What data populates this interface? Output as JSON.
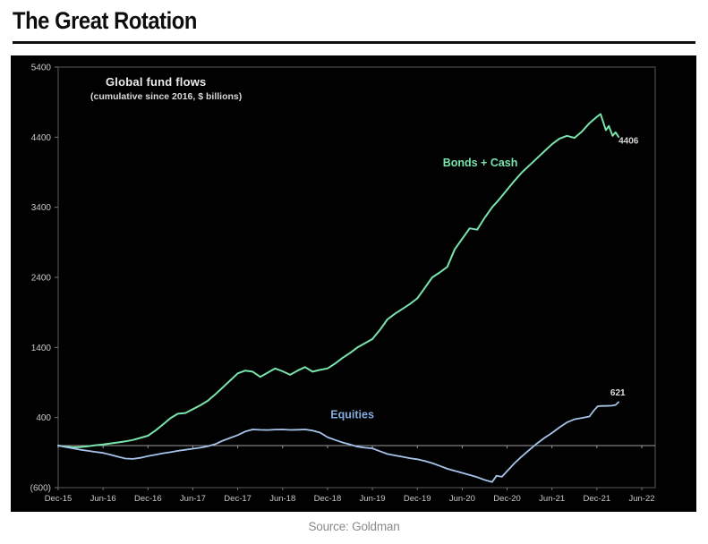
{
  "page": {
    "title": "The Great Rotation",
    "source": "Source: Goldman"
  },
  "chart_data": {
    "type": "line",
    "title": "Global fund flows",
    "subtitle": "(cumulative since 2016, $ billions)",
    "x_unit": "months since Dec-2015",
    "xlim": [
      0,
      78
    ],
    "ylim": [
      -600,
      5400
    ],
    "grid": "zero-line only",
    "legend": "inline labels on lines",
    "x_ticks": [
      {
        "label": "Dec-15",
        "t": 0
      },
      {
        "label": "Jun-16",
        "t": 6
      },
      {
        "label": "Dec-16",
        "t": 12
      },
      {
        "label": "Jun-17",
        "t": 18
      },
      {
        "label": "Dec-17",
        "t": 24
      },
      {
        "label": "Jun-18",
        "t": 30
      },
      {
        "label": "Dec-18",
        "t": 36
      },
      {
        "label": "Jun-19",
        "t": 42
      },
      {
        "label": "Dec-19",
        "t": 48
      },
      {
        "label": "Jun-20",
        "t": 54
      },
      {
        "label": "Dec-20",
        "t": 60
      },
      {
        "label": "Jun-21",
        "t": 66
      },
      {
        "label": "Dec-21",
        "t": 72
      },
      {
        "label": "Jun-22",
        "t": 78
      }
    ],
    "y_ticks": [
      {
        "label": "5400",
        "v": 5400
      },
      {
        "label": "4400",
        "v": 4400
      },
      {
        "label": "3400",
        "v": 3400
      },
      {
        "label": "2400",
        "v": 2400
      },
      {
        "label": "1400",
        "v": 1400
      },
      {
        "label": "400",
        "v": 400
      },
      {
        "label": "(600)",
        "v": -600
      }
    ],
    "series": [
      {
        "name": "Bonds + Cash",
        "color": "#79e4ad",
        "stroke_width": 2,
        "end_value": 4406,
        "points": [
          [
            0,
            0
          ],
          [
            1,
            -15
          ],
          [
            2,
            -25
          ],
          [
            3,
            -20
          ],
          [
            4,
            -10
          ],
          [
            5,
            5
          ],
          [
            6,
            15
          ],
          [
            7,
            30
          ],
          [
            8,
            45
          ],
          [
            9,
            60
          ],
          [
            10,
            80
          ],
          [
            11,
            110
          ],
          [
            12,
            140
          ],
          [
            13,
            215
          ],
          [
            14,
            300
          ],
          [
            15,
            390
          ],
          [
            16,
            455
          ],
          [
            17,
            465
          ],
          [
            18,
            520
          ],
          [
            19,
            575
          ],
          [
            20,
            640
          ],
          [
            21,
            730
          ],
          [
            22,
            830
          ],
          [
            23,
            930
          ],
          [
            24,
            1030
          ],
          [
            25,
            1070
          ],
          [
            26,
            1055
          ],
          [
            27,
            980
          ],
          [
            28,
            1040
          ],
          [
            29,
            1100
          ],
          [
            30,
            1060
          ],
          [
            31,
            1010
          ],
          [
            32,
            1070
          ],
          [
            33,
            1120
          ],
          [
            34,
            1055
          ],
          [
            35,
            1080
          ],
          [
            36,
            1100
          ],
          [
            37,
            1170
          ],
          [
            38,
            1250
          ],
          [
            39,
            1320
          ],
          [
            40,
            1400
          ],
          [
            41,
            1460
          ],
          [
            42,
            1520
          ],
          [
            43,
            1650
          ],
          [
            44,
            1800
          ],
          [
            45,
            1880
          ],
          [
            46,
            1950
          ],
          [
            47,
            2020
          ],
          [
            48,
            2100
          ],
          [
            49,
            2250
          ],
          [
            50,
            2400
          ],
          [
            51,
            2470
          ],
          [
            52,
            2550
          ],
          [
            53,
            2800
          ],
          [
            54,
            2950
          ],
          [
            55,
            3100
          ],
          [
            56,
            3080
          ],
          [
            57,
            3250
          ],
          [
            58,
            3400
          ],
          [
            59,
            3520
          ],
          [
            60,
            3650
          ],
          [
            61,
            3780
          ],
          [
            62,
            3900
          ],
          [
            63,
            4000
          ],
          [
            64,
            4100
          ],
          [
            65,
            4200
          ],
          [
            66,
            4300
          ],
          [
            67,
            4380
          ],
          [
            68,
            4420
          ],
          [
            69,
            4390
          ],
          [
            70,
            4480
          ],
          [
            71,
            4600
          ],
          [
            72,
            4690
          ],
          [
            72.5,
            4730
          ],
          [
            73.2,
            4500
          ],
          [
            73.6,
            4560
          ],
          [
            74.1,
            4420
          ],
          [
            74.5,
            4470
          ],
          [
            74.9,
            4406
          ]
        ]
      },
      {
        "name": "Equities",
        "color": "#a6c4e9",
        "stroke_width": 1.8,
        "end_value": 621,
        "points": [
          [
            0,
            0
          ],
          [
            1,
            -20
          ],
          [
            2,
            -40
          ],
          [
            3,
            -60
          ],
          [
            4,
            -75
          ],
          [
            5,
            -90
          ],
          [
            6,
            -105
          ],
          [
            7,
            -130
          ],
          [
            8,
            -160
          ],
          [
            9,
            -185
          ],
          [
            10,
            -190
          ],
          [
            11,
            -175
          ],
          [
            12,
            -150
          ],
          [
            13,
            -130
          ],
          [
            14,
            -110
          ],
          [
            15,
            -95
          ],
          [
            16,
            -75
          ],
          [
            17,
            -60
          ],
          [
            18,
            -45
          ],
          [
            19,
            -30
          ],
          [
            20,
            -10
          ],
          [
            21,
            20
          ],
          [
            22,
            70
          ],
          [
            23,
            110
          ],
          [
            24,
            150
          ],
          [
            25,
            200
          ],
          [
            26,
            230
          ],
          [
            27,
            225
          ],
          [
            28,
            222
          ],
          [
            29,
            228
          ],
          [
            30,
            230
          ],
          [
            31,
            224
          ],
          [
            32,
            226
          ],
          [
            33,
            230
          ],
          [
            34,
            215
          ],
          [
            35,
            185
          ],
          [
            36,
            120
          ],
          [
            37,
            80
          ],
          [
            38,
            45
          ],
          [
            39,
            15
          ],
          [
            40,
            -15
          ],
          [
            41,
            -30
          ],
          [
            42,
            -40
          ],
          [
            43,
            -80
          ],
          [
            44,
            -120
          ],
          [
            45,
            -140
          ],
          [
            46,
            -160
          ],
          [
            47,
            -180
          ],
          [
            48,
            -195
          ],
          [
            49,
            -220
          ],
          [
            50,
            -250
          ],
          [
            51,
            -290
          ],
          [
            52,
            -330
          ],
          [
            53,
            -360
          ],
          [
            54,
            -390
          ],
          [
            55,
            -420
          ],
          [
            56,
            -450
          ],
          [
            57,
            -490
          ],
          [
            58,
            -520
          ],
          [
            58.6,
            -430
          ],
          [
            59.3,
            -445
          ],
          [
            60,
            -365
          ],
          [
            61,
            -250
          ],
          [
            62,
            -150
          ],
          [
            63,
            -60
          ],
          [
            64,
            30
          ],
          [
            65,
            110
          ],
          [
            66,
            180
          ],
          [
            67,
            260
          ],
          [
            68,
            330
          ],
          [
            69,
            375
          ],
          [
            70,
            395
          ],
          [
            71,
            415
          ],
          [
            71.6,
            500
          ],
          [
            72.1,
            560
          ],
          [
            72.6,
            565
          ],
          [
            73.2,
            565
          ],
          [
            74,
            570
          ],
          [
            74.5,
            580
          ],
          [
            74.9,
            621
          ]
        ]
      }
    ],
    "annotations": [
      {
        "id": "bonds-cash-series-label",
        "text": "Bonds + Cash",
        "t": 51.4,
        "v": 3980,
        "color": "#79e4ad",
        "size": 12.5,
        "bold": true,
        "anchor": "start"
      },
      {
        "id": "equities-series-label",
        "text": "Equities",
        "t": 36.4,
        "v": 390,
        "color": "#84abdd",
        "size": 12.5,
        "bold": true,
        "anchor": "start"
      },
      {
        "id": "bonds-cash-end-value",
        "text": "4406",
        "t": 74.9,
        "v": 4310,
        "color": "#d4d4d4",
        "size": 10,
        "bold": true,
        "anchor": "start"
      },
      {
        "id": "equities-end-value",
        "text": "621",
        "t": 73.8,
        "v": 715,
        "color": "#dddddd",
        "size": 10,
        "bold": true,
        "anchor": "start"
      }
    ]
  }
}
